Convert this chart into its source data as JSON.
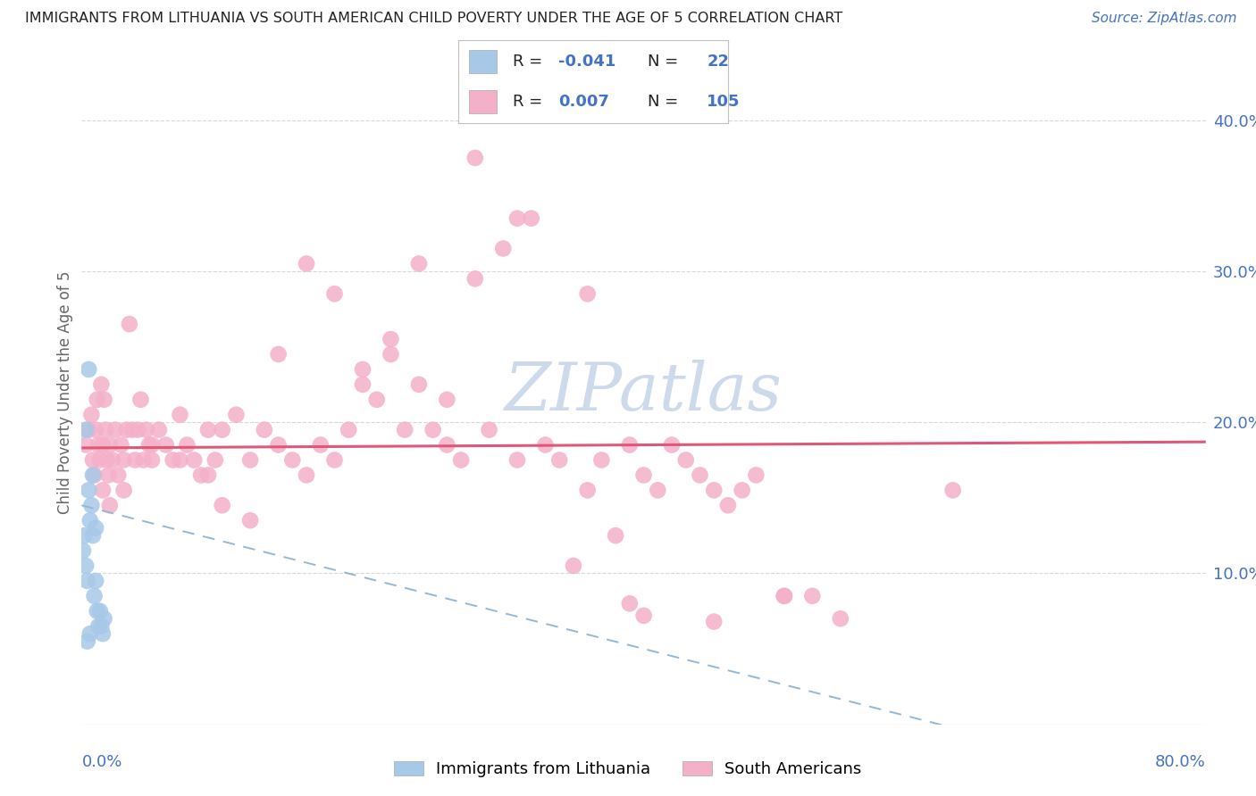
{
  "title": "IMMIGRANTS FROM LITHUANIA VS SOUTH AMERICAN CHILD POVERTY UNDER THE AGE OF 5 CORRELATION CHART",
  "source": "Source: ZipAtlas.com",
  "ylabel": "Child Poverty Under the Age of 5",
  "xlim": [
    0.0,
    0.8
  ],
  "ylim": [
    0.0,
    0.44
  ],
  "ytick_vals": [
    0.1,
    0.2,
    0.3,
    0.4
  ],
  "ytick_labels_right": [
    "10.0%",
    "20.0%",
    "30.0%",
    "40.0%"
  ],
  "color_blue_fill": "#a8c8e8",
  "color_pink_fill": "#f4b0c8",
  "color_pink_line": "#e05878",
  "color_blue_line_dash": "#90b8d8",
  "axis_tick_color": "#4472c4",
  "title_color": "#222222",
  "source_color": "#4472c4",
  "ylabel_color": "#666666",
  "watermark_color": "#ccdaec",
  "grid_color": "#d8d8d8",
  "background": "#ffffff",
  "legend_text_color": "#222222",
  "legend_val_color": "#4472c4",
  "blue_x": [
    0.001,
    0.002,
    0.003,
    0.004,
    0.005,
    0.006,
    0.007,
    0.008,
    0.009,
    0.01,
    0.011,
    0.012,
    0.013,
    0.014,
    0.015,
    0.016,
    0.003,
    0.005,
    0.008,
    0.01,
    0.006,
    0.004
  ],
  "blue_y": [
    0.115,
    0.125,
    0.105,
    0.095,
    0.235,
    0.135,
    0.145,
    0.125,
    0.085,
    0.095,
    0.075,
    0.065,
    0.075,
    0.065,
    0.06,
    0.07,
    0.195,
    0.155,
    0.165,
    0.13,
    0.06,
    0.055
  ],
  "pink_x": [
    0.003,
    0.005,
    0.007,
    0.008,
    0.009,
    0.01,
    0.011,
    0.012,
    0.013,
    0.014,
    0.015,
    0.016,
    0.017,
    0.018,
    0.019,
    0.02,
    0.022,
    0.024,
    0.026,
    0.028,
    0.03,
    0.032,
    0.034,
    0.036,
    0.038,
    0.04,
    0.042,
    0.044,
    0.046,
    0.048,
    0.05,
    0.055,
    0.06,
    0.065,
    0.07,
    0.075,
    0.08,
    0.085,
    0.09,
    0.095,
    0.1,
    0.11,
    0.12,
    0.13,
    0.14,
    0.15,
    0.16,
    0.17,
    0.18,
    0.19,
    0.2,
    0.21,
    0.22,
    0.23,
    0.24,
    0.25,
    0.26,
    0.27,
    0.28,
    0.29,
    0.3,
    0.31,
    0.32,
    0.33,
    0.34,
    0.35,
    0.36,
    0.37,
    0.38,
    0.39,
    0.4,
    0.41,
    0.42,
    0.43,
    0.44,
    0.45,
    0.46,
    0.47,
    0.48,
    0.5,
    0.52,
    0.54,
    0.28,
    0.31,
    0.36,
    0.14,
    0.16,
    0.18,
    0.2,
    0.22,
    0.24,
    0.26,
    0.1,
    0.12,
    0.05,
    0.07,
    0.09,
    0.03,
    0.02,
    0.015,
    0.62,
    0.39,
    0.4,
    0.45,
    0.5
  ],
  "pink_y": [
    0.185,
    0.195,
    0.205,
    0.175,
    0.165,
    0.195,
    0.215,
    0.185,
    0.175,
    0.225,
    0.185,
    0.215,
    0.195,
    0.175,
    0.165,
    0.185,
    0.175,
    0.195,
    0.165,
    0.185,
    0.175,
    0.195,
    0.265,
    0.195,
    0.175,
    0.195,
    0.215,
    0.175,
    0.195,
    0.185,
    0.175,
    0.195,
    0.185,
    0.175,
    0.205,
    0.185,
    0.175,
    0.165,
    0.195,
    0.175,
    0.195,
    0.205,
    0.175,
    0.195,
    0.185,
    0.175,
    0.165,
    0.185,
    0.175,
    0.195,
    0.225,
    0.215,
    0.245,
    0.195,
    0.305,
    0.195,
    0.185,
    0.175,
    0.295,
    0.195,
    0.315,
    0.175,
    0.335,
    0.185,
    0.175,
    0.105,
    0.155,
    0.175,
    0.125,
    0.185,
    0.165,
    0.155,
    0.185,
    0.175,
    0.165,
    0.155,
    0.145,
    0.155,
    0.165,
    0.085,
    0.085,
    0.07,
    0.375,
    0.335,
    0.285,
    0.245,
    0.305,
    0.285,
    0.235,
    0.255,
    0.225,
    0.215,
    0.145,
    0.135,
    0.185,
    0.175,
    0.165,
    0.155,
    0.145,
    0.155,
    0.155,
    0.08,
    0.072,
    0.068,
    0.085
  ],
  "pink_line_x": [
    0.0,
    0.8
  ],
  "pink_line_y": [
    0.183,
    0.187
  ],
  "blue_line_x": [
    0.0,
    0.8
  ],
  "blue_line_y": [
    0.145,
    -0.045
  ]
}
